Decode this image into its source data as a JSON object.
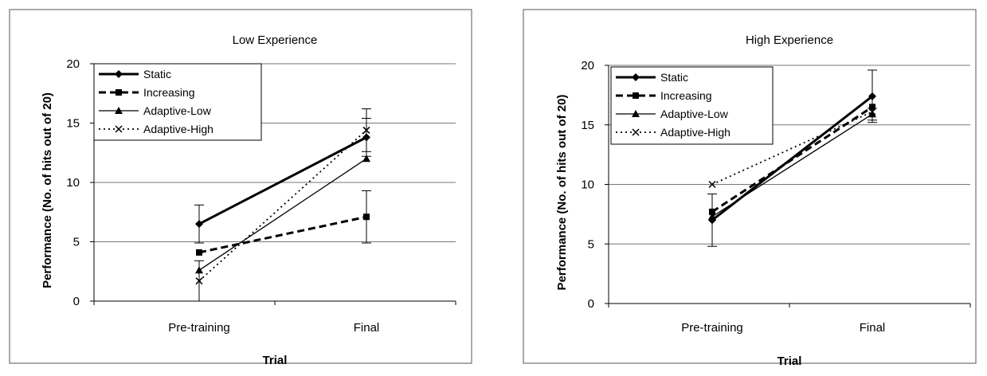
{
  "chart_data": [
    {
      "type": "line",
      "title": "Low Experience",
      "xlabel": "Trial",
      "ylabel": "Performance (No. of hits out of 20)",
      "categories": [
        "Pre-training",
        "Final"
      ],
      "ylim": [
        0,
        20
      ],
      "yticks": [
        0,
        5,
        10,
        15,
        20
      ],
      "grid": true,
      "legend": "top-left",
      "series": [
        {
          "name": "Static",
          "values": [
            6.5,
            13.8
          ],
          "error": [
            1.6,
            1.6
          ],
          "style": "solid-thick",
          "marker": "diamond"
        },
        {
          "name": "Increasing",
          "values": [
            4.1,
            7.1
          ],
          "error": [
            0,
            2.2
          ],
          "style": "dashed-thick",
          "marker": "square"
        },
        {
          "name": "Adaptive-Low",
          "values": [
            2.6,
            12.0
          ],
          "error": [
            0,
            0
          ],
          "style": "solid-thin",
          "marker": "triangle"
        },
        {
          "name": "Adaptive-High",
          "values": [
            1.7,
            14.4
          ],
          "error": [
            1.7,
            1.8
          ],
          "style": "dotted",
          "marker": "x"
        }
      ]
    },
    {
      "type": "line",
      "title": "High Experience",
      "xlabel": "Trial",
      "ylabel": "Performance (No. of hits out of 20)",
      "categories": [
        "Pre-training",
        "Final"
      ],
      "ylim": [
        0,
        20
      ],
      "yticks": [
        0,
        5,
        10,
        15,
        20
      ],
      "grid": true,
      "legend": "top-left",
      "series": [
        {
          "name": "Static",
          "values": [
            7.0,
            17.4
          ],
          "error": [
            2.2,
            2.2
          ],
          "style": "solid-thick",
          "marker": "diamond"
        },
        {
          "name": "Increasing",
          "values": [
            7.7,
            16.5
          ],
          "error": [
            0,
            0
          ],
          "style": "dashed-thick",
          "marker": "square"
        },
        {
          "name": "Adaptive-Low",
          "values": [
            7.3,
            15.9
          ],
          "error": [
            0,
            0.5
          ],
          "style": "solid-thin",
          "marker": "triangle"
        },
        {
          "name": "Adaptive-High",
          "values": [
            10.0,
            16.1
          ],
          "error": [
            0,
            0
          ],
          "style": "dotted",
          "marker": "x"
        }
      ]
    }
  ]
}
